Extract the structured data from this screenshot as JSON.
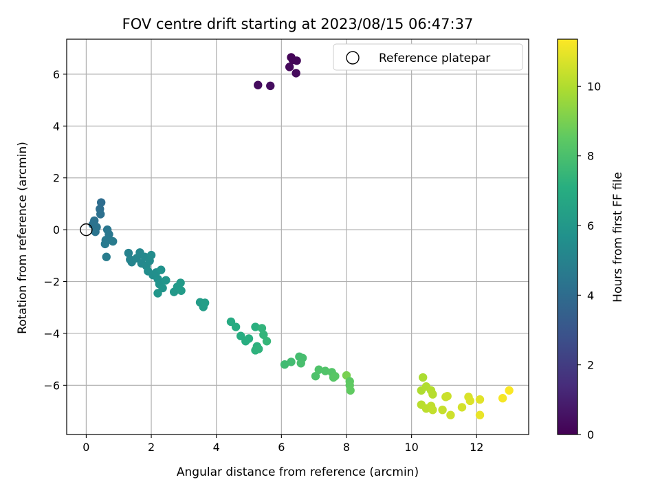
{
  "chart_data": {
    "type": "scatter",
    "title": "FOV centre drift starting at 2023/08/15 06:47:37",
    "xlabel": "Angular distance from reference (arcmin)",
    "ylabel": "Rotation from reference (arcmin)",
    "xlim": [
      -0.6,
      13.6
    ],
    "ylim": [
      -7.9,
      7.35
    ],
    "xticks": [
      0,
      2,
      4,
      6,
      8,
      10,
      12
    ],
    "yticks": [
      -6,
      -4,
      -2,
      0,
      2,
      4,
      6
    ],
    "grid": true,
    "legend": {
      "position": "top-right",
      "entries": [
        "Reference platepar"
      ]
    },
    "reference_point": {
      "x": 0,
      "y": 0,
      "label": "Reference platepar"
    },
    "colorbar": {
      "label": "Hours from first FF file",
      "range": [
        0,
        11.35
      ],
      "ticks": [
        0,
        2,
        4,
        6,
        8,
        10
      ],
      "colormap": "viridis"
    },
    "points": [
      {
        "x": 6.3,
        "y": 6.65,
        "h": 0.1
      },
      {
        "x": 6.35,
        "y": 6.55,
        "h": 0.15
      },
      {
        "x": 6.47,
        "y": 6.52,
        "h": 0.2
      },
      {
        "x": 6.25,
        "y": 6.28,
        "h": 0.25
      },
      {
        "x": 6.45,
        "y": 6.04,
        "h": 0.3
      },
      {
        "x": 5.28,
        "y": 5.58,
        "h": 0.35
      },
      {
        "x": 5.66,
        "y": 5.55,
        "h": 0.4
      },
      {
        "x": 0.46,
        "y": 1.05,
        "h": 4.05
      },
      {
        "x": 0.42,
        "y": 0.8,
        "h": 4.1
      },
      {
        "x": 0.44,
        "y": 0.6,
        "h": 4.15
      },
      {
        "x": 0.25,
        "y": 0.35,
        "h": 4.2
      },
      {
        "x": 0.2,
        "y": 0.2,
        "h": 4.25
      },
      {
        "x": 0.32,
        "y": 0.1,
        "h": 4.3
      },
      {
        "x": 0.28,
        "y": -0.08,
        "h": 4.35
      },
      {
        "x": 0.65,
        "y": 0.0,
        "h": 4.45
      },
      {
        "x": 0.7,
        "y": -0.18,
        "h": 4.5
      },
      {
        "x": 0.6,
        "y": -0.4,
        "h": 4.55
      },
      {
        "x": 0.58,
        "y": -0.55,
        "h": 4.6
      },
      {
        "x": 0.82,
        "y": -0.45,
        "h": 4.65
      },
      {
        "x": 0.62,
        "y": -1.05,
        "h": 4.7
      },
      {
        "x": 1.3,
        "y": -0.9,
        "h": 5.0
      },
      {
        "x": 1.35,
        "y": -1.15,
        "h": 5.05
      },
      {
        "x": 1.4,
        "y": -1.25,
        "h": 5.1
      },
      {
        "x": 1.55,
        "y": -1.1,
        "h": 5.15
      },
      {
        "x": 1.65,
        "y": -0.88,
        "h": 5.2
      },
      {
        "x": 1.7,
        "y": -1.3,
        "h": 5.25
      },
      {
        "x": 1.8,
        "y": -1.05,
        "h": 5.3
      },
      {
        "x": 1.85,
        "y": -1.4,
        "h": 5.35
      },
      {
        "x": 1.95,
        "y": -1.2,
        "h": 5.4
      },
      {
        "x": 2.0,
        "y": -0.98,
        "h": 5.45
      },
      {
        "x": 1.9,
        "y": -1.6,
        "h": 5.5
      },
      {
        "x": 2.05,
        "y": -1.75,
        "h": 5.55
      },
      {
        "x": 2.15,
        "y": -1.65,
        "h": 5.6
      },
      {
        "x": 2.2,
        "y": -1.9,
        "h": 5.65
      },
      {
        "x": 2.3,
        "y": -1.55,
        "h": 5.7
      },
      {
        "x": 2.25,
        "y": -2.1,
        "h": 5.75
      },
      {
        "x": 2.35,
        "y": -2.25,
        "h": 5.8
      },
      {
        "x": 2.45,
        "y": -1.95,
        "h": 5.85
      },
      {
        "x": 2.2,
        "y": -2.45,
        "h": 5.9
      },
      {
        "x": 2.7,
        "y": -2.4,
        "h": 6.0
      },
      {
        "x": 2.8,
        "y": -2.2,
        "h": 6.05
      },
      {
        "x": 2.9,
        "y": -2.05,
        "h": 6.1
      },
      {
        "x": 2.92,
        "y": -2.35,
        "h": 6.15
      },
      {
        "x": 3.5,
        "y": -2.8,
        "h": 6.2
      },
      {
        "x": 3.6,
        "y": -2.98,
        "h": 6.25
      },
      {
        "x": 3.65,
        "y": -2.82,
        "h": 6.3
      },
      {
        "x": 4.45,
        "y": -3.55,
        "h": 6.9
      },
      {
        "x": 4.6,
        "y": -3.75,
        "h": 6.95
      },
      {
        "x": 4.75,
        "y": -4.1,
        "h": 7.0
      },
      {
        "x": 4.9,
        "y": -4.3,
        "h": 7.05
      },
      {
        "x": 5.0,
        "y": -4.2,
        "h": 7.1
      },
      {
        "x": 5.2,
        "y": -3.75,
        "h": 7.15
      },
      {
        "x": 5.25,
        "y": -4.5,
        "h": 7.2
      },
      {
        "x": 5.2,
        "y": -4.65,
        "h": 7.25
      },
      {
        "x": 5.3,
        "y": -4.6,
        "h": 7.3
      },
      {
        "x": 5.4,
        "y": -3.8,
        "h": 7.35
      },
      {
        "x": 5.45,
        "y": -4.05,
        "h": 7.4
      },
      {
        "x": 5.55,
        "y": -4.3,
        "h": 7.45
      },
      {
        "x": 6.1,
        "y": -5.2,
        "h": 7.75
      },
      {
        "x": 6.3,
        "y": -5.1,
        "h": 7.8
      },
      {
        "x": 6.55,
        "y": -4.9,
        "h": 7.85
      },
      {
        "x": 6.65,
        "y": -4.95,
        "h": 7.9
      },
      {
        "x": 6.6,
        "y": -5.15,
        "h": 7.95
      },
      {
        "x": 7.05,
        "y": -5.65,
        "h": 8.1
      },
      {
        "x": 7.15,
        "y": -5.4,
        "h": 8.15
      },
      {
        "x": 7.35,
        "y": -5.45,
        "h": 8.2
      },
      {
        "x": 7.55,
        "y": -5.5,
        "h": 8.25
      },
      {
        "x": 7.6,
        "y": -5.7,
        "h": 8.3
      },
      {
        "x": 7.65,
        "y": -5.65,
        "h": 8.35
      },
      {
        "x": 8.0,
        "y": -5.62,
        "h": 9.0
      },
      {
        "x": 8.1,
        "y": -5.85,
        "h": 8.45
      },
      {
        "x": 8.1,
        "y": -6.0,
        "h": 8.5
      },
      {
        "x": 8.12,
        "y": -6.2,
        "h": 8.55
      },
      {
        "x": 10.35,
        "y": -5.7,
        "h": 9.9
      },
      {
        "x": 10.3,
        "y": -6.2,
        "h": 9.95
      },
      {
        "x": 10.45,
        "y": -6.05,
        "h": 10.0
      },
      {
        "x": 10.6,
        "y": -6.2,
        "h": 10.05
      },
      {
        "x": 10.65,
        "y": -6.35,
        "h": 10.1
      },
      {
        "x": 10.3,
        "y": -6.75,
        "h": 10.15
      },
      {
        "x": 10.45,
        "y": -6.9,
        "h": 10.2
      },
      {
        "x": 10.6,
        "y": -6.8,
        "h": 10.25
      },
      {
        "x": 10.65,
        "y": -6.95,
        "h": 10.3
      },
      {
        "x": 10.95,
        "y": -6.95,
        "h": 10.35
      },
      {
        "x": 11.05,
        "y": -6.45,
        "h": 10.4
      },
      {
        "x": 11.1,
        "y": -6.42,
        "h": 10.45
      },
      {
        "x": 11.2,
        "y": -7.15,
        "h": 10.5
      },
      {
        "x": 11.55,
        "y": -6.85,
        "h": 10.6
      },
      {
        "x": 11.75,
        "y": -6.45,
        "h": 10.7
      },
      {
        "x": 11.8,
        "y": -6.6,
        "h": 10.75
      },
      {
        "x": 12.1,
        "y": -6.55,
        "h": 10.85
      },
      {
        "x": 12.1,
        "y": -7.15,
        "h": 11.0
      },
      {
        "x": 12.8,
        "y": -6.5,
        "h": 11.2
      },
      {
        "x": 13.0,
        "y": -6.2,
        "h": 11.3
      }
    ]
  }
}
